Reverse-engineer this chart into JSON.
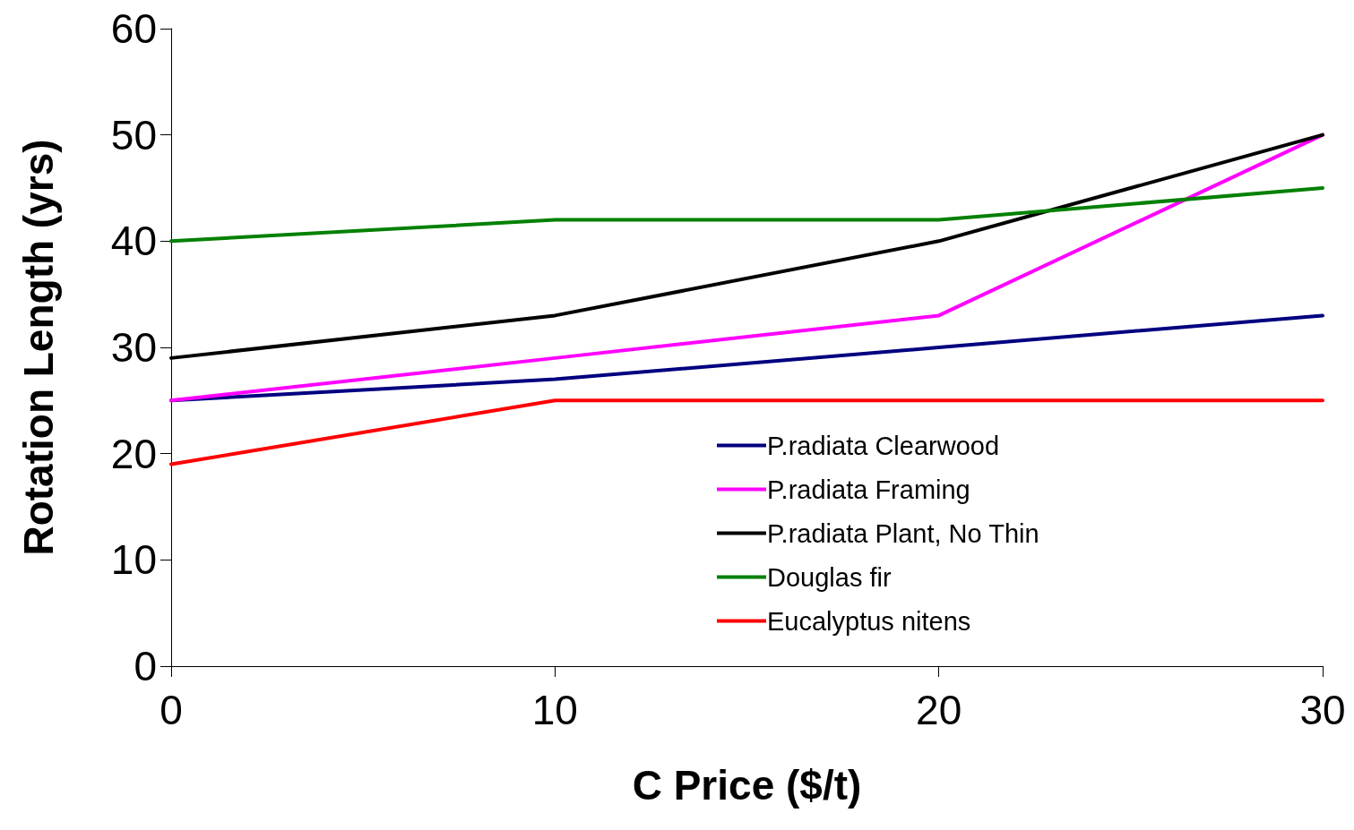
{
  "chart_data": {
    "type": "line",
    "xlabel": "C Price ($/t)",
    "ylabel": "Rotation Length (yrs)",
    "x": [
      0,
      10,
      20,
      30
    ],
    "xlim": [
      0,
      30
    ],
    "xticks": [
      0,
      10,
      20,
      30
    ],
    "ylim": [
      0,
      60
    ],
    "yticks": [
      0,
      10,
      20,
      30,
      40,
      50,
      60
    ],
    "grid": false,
    "legend": "bottom right",
    "marker": "none",
    "line_style": "solid",
    "series": [
      {
        "name": "P.radiata Clearwood",
        "color": "#000080",
        "values": [
          25,
          27,
          30,
          33
        ]
      },
      {
        "name": "P.radiata Framing",
        "color": "#ff00ff",
        "values": [
          25,
          29,
          33,
          50
        ]
      },
      {
        "name": "P.radiata Plant, No Thin",
        "color": "#000000",
        "values": [
          29,
          33,
          40,
          50
        ]
      },
      {
        "name": "Douglas fir",
        "color": "#008000",
        "values": [
          40,
          42,
          42,
          45
        ]
      },
      {
        "name": "Eucalyptus nitens",
        "color": "#ff0000",
        "values": [
          19,
          25,
          25,
          25
        ]
      }
    ]
  }
}
